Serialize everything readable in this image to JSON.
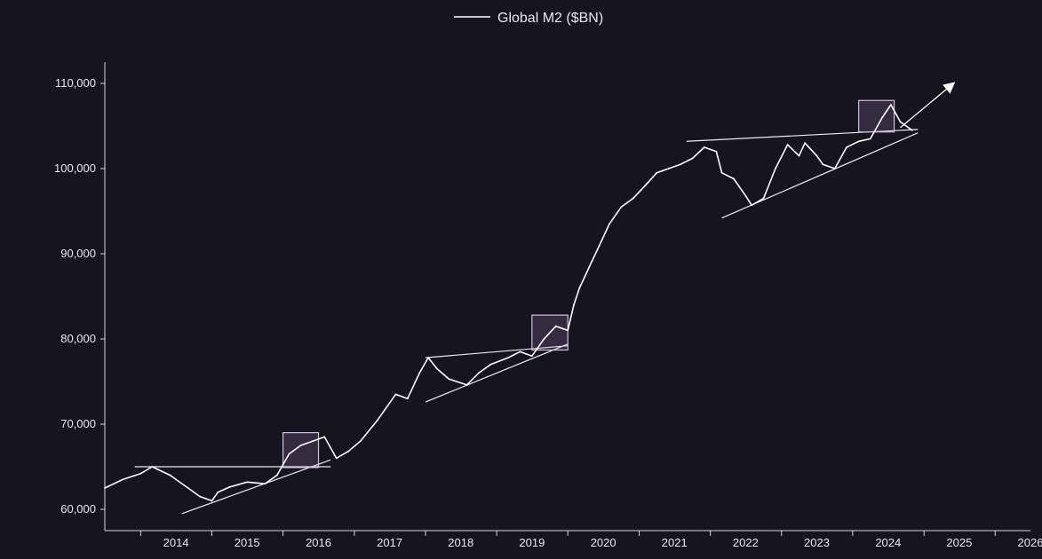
{
  "chart_data": {
    "type": "line",
    "title": "",
    "xlabel": "",
    "ylabel": "",
    "ylim": [
      57500,
      112500
    ],
    "xlim": [
      "2013-07-01",
      "2026-07-01"
    ],
    "grid": false,
    "legend_placement": "top-center",
    "yticks": [
      60000,
      70000,
      80000,
      90000,
      100000,
      110000
    ],
    "ytick_labels": [
      "60,000",
      "70,000",
      "80,000",
      "90,000",
      "100,000",
      "110,000"
    ],
    "xtick_labels": [
      "2014",
      "2015",
      "2016",
      "2017",
      "2018",
      "2019",
      "2020",
      "2021",
      "2022",
      "2023",
      "2024",
      "2025",
      "2026"
    ],
    "series": [
      {
        "name": "Global M2 ($BN)",
        "color": "#ffffff",
        "points": [
          [
            "2013-07-01",
            62500
          ],
          [
            "2013-10-01",
            63500
          ],
          [
            "2014-01-01",
            64200
          ],
          [
            "2014-03-01",
            65000
          ],
          [
            "2014-06-01",
            64000
          ],
          [
            "2014-09-01",
            62500
          ],
          [
            "2014-11-01",
            61500
          ],
          [
            "2015-01-01",
            61000
          ],
          [
            "2015-02-01",
            62000
          ],
          [
            "2015-04-01",
            62600
          ],
          [
            "2015-07-01",
            63200
          ],
          [
            "2015-10-01",
            63000
          ],
          [
            "2015-12-01",
            64000
          ],
          [
            "2016-02-01",
            66500
          ],
          [
            "2016-04-01",
            67500
          ],
          [
            "2016-06-01",
            68000
          ],
          [
            "2016-08-01",
            68500
          ],
          [
            "2016-10-01",
            66000
          ],
          [
            "2016-12-01",
            66800
          ],
          [
            "2017-02-01",
            68000
          ],
          [
            "2017-05-01",
            70500
          ],
          [
            "2017-08-01",
            73500
          ],
          [
            "2017-10-01",
            73000
          ],
          [
            "2017-12-01",
            76000
          ],
          [
            "2018-01-15",
            77800
          ],
          [
            "2018-03-01",
            76500
          ],
          [
            "2018-05-01",
            75300
          ],
          [
            "2018-08-01",
            74600
          ],
          [
            "2018-10-01",
            76000
          ],
          [
            "2018-12-01",
            77000
          ],
          [
            "2019-03-01",
            77800
          ],
          [
            "2019-05-01",
            78500
          ],
          [
            "2019-07-01",
            78000
          ],
          [
            "2019-09-01",
            80000
          ],
          [
            "2019-11-01",
            81500
          ],
          [
            "2020-01-01",
            81000
          ],
          [
            "2020-02-01",
            84000
          ],
          [
            "2020-03-01",
            86000
          ],
          [
            "2020-04-01",
            87500
          ],
          [
            "2020-05-01",
            89000
          ],
          [
            "2020-06-01",
            90500
          ],
          [
            "2020-08-01",
            93500
          ],
          [
            "2020-10-01",
            95500
          ],
          [
            "2020-12-01",
            96500
          ],
          [
            "2021-02-01",
            98000
          ],
          [
            "2021-04-01",
            99500
          ],
          [
            "2021-06-01",
            100000
          ],
          [
            "2021-08-01",
            100500
          ],
          [
            "2021-10-01",
            101200
          ],
          [
            "2021-12-01",
            102500
          ],
          [
            "2022-02-01",
            102000
          ],
          [
            "2022-03-01",
            99500
          ],
          [
            "2022-05-01",
            98800
          ],
          [
            "2022-07-01",
            96800
          ],
          [
            "2022-08-01",
            95700
          ],
          [
            "2022-10-01",
            96500
          ],
          [
            "2022-12-01",
            100000
          ],
          [
            "2023-02-01",
            102800
          ],
          [
            "2023-04-01",
            101500
          ],
          [
            "2023-05-01",
            103000
          ],
          [
            "2023-07-01",
            101500
          ],
          [
            "2023-08-01",
            100500
          ],
          [
            "2023-10-01",
            100000
          ],
          [
            "2023-12-01",
            102500
          ],
          [
            "2024-02-01",
            103200
          ],
          [
            "2024-04-01",
            103500
          ],
          [
            "2024-06-01",
            106000
          ],
          [
            "2024-07-15",
            107500
          ],
          [
            "2024-09-01",
            105500
          ],
          [
            "2024-11-01",
            104500
          ]
        ]
      }
    ],
    "annotations": {
      "resistance_lines": [
        [
          [
            "2013-12-01",
            65000
          ],
          [
            "2016-09-01",
            65000
          ]
        ],
        [
          [
            "2018-01-01",
            77800
          ],
          [
            "2020-01-01",
            79200
          ]
        ],
        [
          [
            "2021-09-01",
            103200
          ],
          [
            "2024-12-01",
            104600
          ]
        ]
      ],
      "support_lines": [
        [
          [
            "2014-08-01",
            59500
          ],
          [
            "2016-09-01",
            65800
          ]
        ],
        [
          [
            "2018-01-01",
            72600
          ],
          [
            "2020-01-01",
            79400
          ]
        ],
        [
          [
            "2022-03-01",
            94200
          ],
          [
            "2024-12-01",
            104200
          ]
        ]
      ],
      "highlight_boxes": [
        [
          [
            "2016-01-01",
            64900
          ],
          [
            "2016-07-01",
            69000
          ]
        ],
        [
          [
            "2019-07-01",
            78700
          ],
          [
            "2020-01-01",
            82800
          ]
        ],
        [
          [
            "2024-02-01",
            104300
          ],
          [
            "2024-08-01",
            108000
          ]
        ]
      ],
      "arrow": [
        [
          "2024-09-01",
          104800
        ],
        [
          "2025-06-01",
          110000
        ]
      ]
    }
  }
}
